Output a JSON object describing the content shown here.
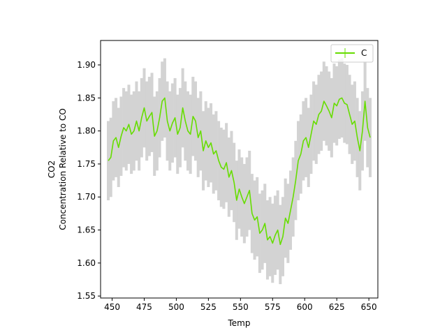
{
  "chart_data": {
    "type": "line",
    "title": "",
    "xlabel": "Temp",
    "ylabel_lines": [
      "CO2",
      "Concentration Relative to CO"
    ],
    "xlim": [
      441,
      657
    ],
    "ylim": [
      1.547,
      1.937
    ],
    "xticks": [
      450,
      475,
      500,
      525,
      550,
      575,
      600,
      625,
      650
    ],
    "yticks": [
      1.55,
      1.6,
      1.65,
      1.7,
      1.75,
      1.8,
      1.85,
      1.9
    ],
    "ytick_labels": [
      "1.55",
      "1.60",
      "1.65",
      "1.70",
      "1.75",
      "1.80",
      "1.85",
      "1.90"
    ],
    "grid": false,
    "legend": {
      "position": "top-right",
      "entries": [
        "C"
      ]
    },
    "colors": {
      "line": "#66dd00",
      "error": "#d3d3d3"
    },
    "series": [
      {
        "name": "C",
        "error_band": 0.06,
        "x": [
          447,
          449,
          451,
          453,
          455,
          457,
          459,
          461,
          463,
          465,
          467,
          469,
          471,
          473,
          475,
          477,
          479,
          481,
          483,
          485,
          487,
          489,
          491,
          493,
          495,
          497,
          499,
          501,
          503,
          505,
          507,
          509,
          511,
          513,
          515,
          517,
          519,
          521,
          523,
          525,
          527,
          529,
          531,
          533,
          535,
          537,
          539,
          541,
          543,
          545,
          547,
          549,
          551,
          553,
          555,
          557,
          559,
          561,
          563,
          565,
          567,
          569,
          571,
          573,
          575,
          577,
          579,
          581,
          583,
          585,
          587,
          589,
          591,
          593,
          595,
          597,
          599,
          601,
          603,
          605,
          607,
          609,
          611,
          613,
          615,
          617,
          619,
          621,
          623,
          625,
          627,
          629,
          631,
          633,
          635,
          637,
          639,
          641,
          643,
          645,
          647,
          649,
          651
        ],
        "y": [
          1.755,
          1.76,
          1.785,
          1.79,
          1.775,
          1.792,
          1.805,
          1.8,
          1.81,
          1.795,
          1.8,
          1.815,
          1.8,
          1.82,
          1.835,
          1.815,
          1.822,
          1.828,
          1.792,
          1.8,
          1.82,
          1.845,
          1.85,
          1.815,
          1.8,
          1.812,
          1.82,
          1.795,
          1.805,
          1.835,
          1.815,
          1.8,
          1.795,
          1.822,
          1.815,
          1.79,
          1.8,
          1.77,
          1.785,
          1.775,
          1.782,
          1.765,
          1.77,
          1.755,
          1.745,
          1.742,
          1.752,
          1.73,
          1.74,
          1.722,
          1.695,
          1.712,
          1.7,
          1.69,
          1.7,
          1.71,
          1.675,
          1.665,
          1.67,
          1.645,
          1.65,
          1.66,
          1.635,
          1.64,
          1.63,
          1.642,
          1.65,
          1.628,
          1.64,
          1.668,
          1.66,
          1.68,
          1.7,
          1.725,
          1.755,
          1.765,
          1.785,
          1.79,
          1.775,
          1.795,
          1.815,
          1.81,
          1.825,
          1.83,
          1.845,
          1.838,
          1.83,
          1.82,
          1.842,
          1.838,
          1.848,
          1.85,
          1.842,
          1.84,
          1.825,
          1.81,
          1.815,
          1.79,
          1.77,
          1.8,
          1.845,
          1.805,
          1.79
        ]
      }
    ]
  }
}
